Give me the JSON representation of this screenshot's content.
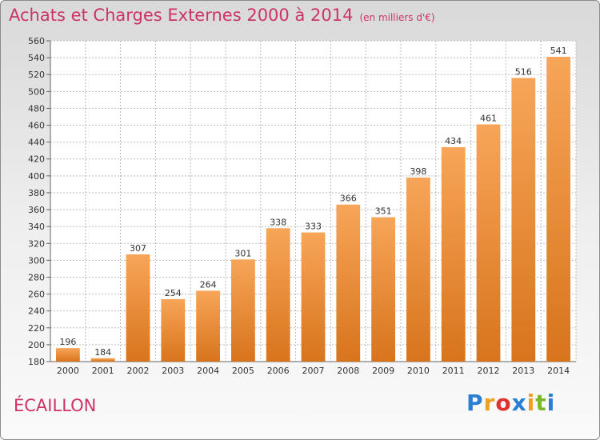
{
  "header": {
    "title": "Achats et Charges Externes 2000 à 2014",
    "unit": "(en milliers d'€)"
  },
  "footer": {
    "town": "ÉCAILLON",
    "brand_letters": [
      {
        "ch": "P",
        "color": "#2a7fd4"
      },
      {
        "ch": "r",
        "color": "#f0a020"
      },
      {
        "ch": "o",
        "color": "#e03030"
      },
      {
        "ch": "x",
        "color": "#2a7fd4"
      },
      {
        "ch": "i",
        "color": "#f0a020"
      },
      {
        "ch": "t",
        "color": "#7ab82a"
      },
      {
        "ch": "i",
        "color": "#2a7fd4"
      }
    ]
  },
  "colors": {
    "accent": "#cc3366",
    "bar_light": "#f7a558",
    "bar_dark": "#d8741c",
    "grid": "#bbbbbb"
  },
  "chart_data": {
    "type": "bar",
    "categories": [
      "2000",
      "2001",
      "2002",
      "2003",
      "2004",
      "2005",
      "2006",
      "2007",
      "2008",
      "2009",
      "2010",
      "2011",
      "2012",
      "2013",
      "2014"
    ],
    "values": [
      196,
      184,
      307,
      254,
      264,
      301,
      338,
      333,
      366,
      351,
      398,
      434,
      461,
      516,
      541
    ],
    "ylim": [
      180,
      560
    ],
    "ytick_step": 20,
    "grid": true,
    "legend": "none"
  }
}
